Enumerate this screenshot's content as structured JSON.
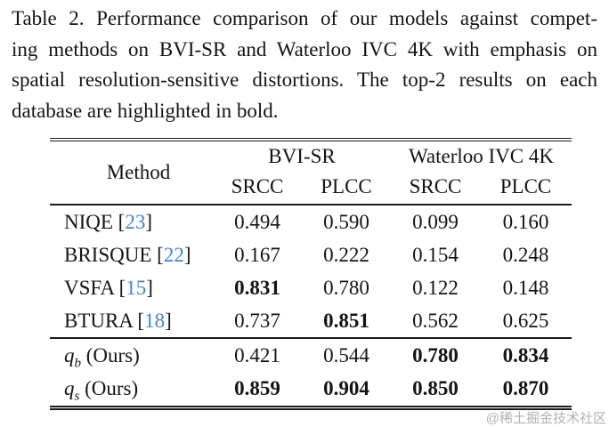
{
  "caption": {
    "lines": [
      "Table 2. Performance comparison of our models against compet-",
      "ing methods on BVI-SR and Waterloo IVC 4K with emphasis on",
      "spatial resolution-sensitive distortions. The top-2 results on each",
      "database are highlighted in bold."
    ]
  },
  "table": {
    "method_header": "Method",
    "groups": [
      {
        "label": "BVI-SR"
      },
      {
        "label": "Waterloo IVC 4K"
      }
    ],
    "subheaders": [
      "SRCC",
      "PLCC",
      "SRCC",
      "PLCC"
    ],
    "rows": [
      {
        "kind": "cite",
        "prefix": "NIQE [",
        "cite": "23",
        "suffix": "]",
        "values": [
          {
            "v": "0.494",
            "bold": false
          },
          {
            "v": "0.590",
            "bold": false
          },
          {
            "v": "0.099",
            "bold": false
          },
          {
            "v": "0.160",
            "bold": false
          }
        ]
      },
      {
        "kind": "cite",
        "prefix": "BRISQUE [",
        "cite": "22",
        "suffix": "]",
        "values": [
          {
            "v": "0.167",
            "bold": false
          },
          {
            "v": "0.222",
            "bold": false
          },
          {
            "v": "0.154",
            "bold": false
          },
          {
            "v": "0.248",
            "bold": false
          }
        ]
      },
      {
        "kind": "cite",
        "prefix": "VSFA [",
        "cite": "15",
        "suffix": "]",
        "values": [
          {
            "v": "0.831",
            "bold": true
          },
          {
            "v": "0.780",
            "bold": false
          },
          {
            "v": "0.122",
            "bold": false
          },
          {
            "v": "0.148",
            "bold": false
          }
        ]
      },
      {
        "kind": "cite",
        "prefix": "BTURA [",
        "cite": "18",
        "suffix": "]",
        "values": [
          {
            "v": "0.737",
            "bold": false
          },
          {
            "v": "0.851",
            "bold": true
          },
          {
            "v": "0.562",
            "bold": false
          },
          {
            "v": "0.625",
            "bold": false
          }
        ]
      },
      {
        "kind": "ours",
        "var": "q",
        "sub": "b",
        "rest": " (Ours)",
        "values": [
          {
            "v": "0.421",
            "bold": false
          },
          {
            "v": "0.544",
            "bold": false
          },
          {
            "v": "0.780",
            "bold": true
          },
          {
            "v": "0.834",
            "bold": true
          }
        ]
      },
      {
        "kind": "ours",
        "var": "q",
        "sub": "s",
        "rest": " (Ours)",
        "values": [
          {
            "v": "0.859",
            "bold": true
          },
          {
            "v": "0.904",
            "bold": true
          },
          {
            "v": "0.850",
            "bold": true
          },
          {
            "v": "0.870",
            "bold": true
          }
        ]
      }
    ]
  },
  "watermark": {
    "text": "@稀土掘金技术社区"
  },
  "colors": {
    "cite_blue": "#4385c6",
    "watermark_gray": "#b2b2b2",
    "text": "#141414"
  }
}
